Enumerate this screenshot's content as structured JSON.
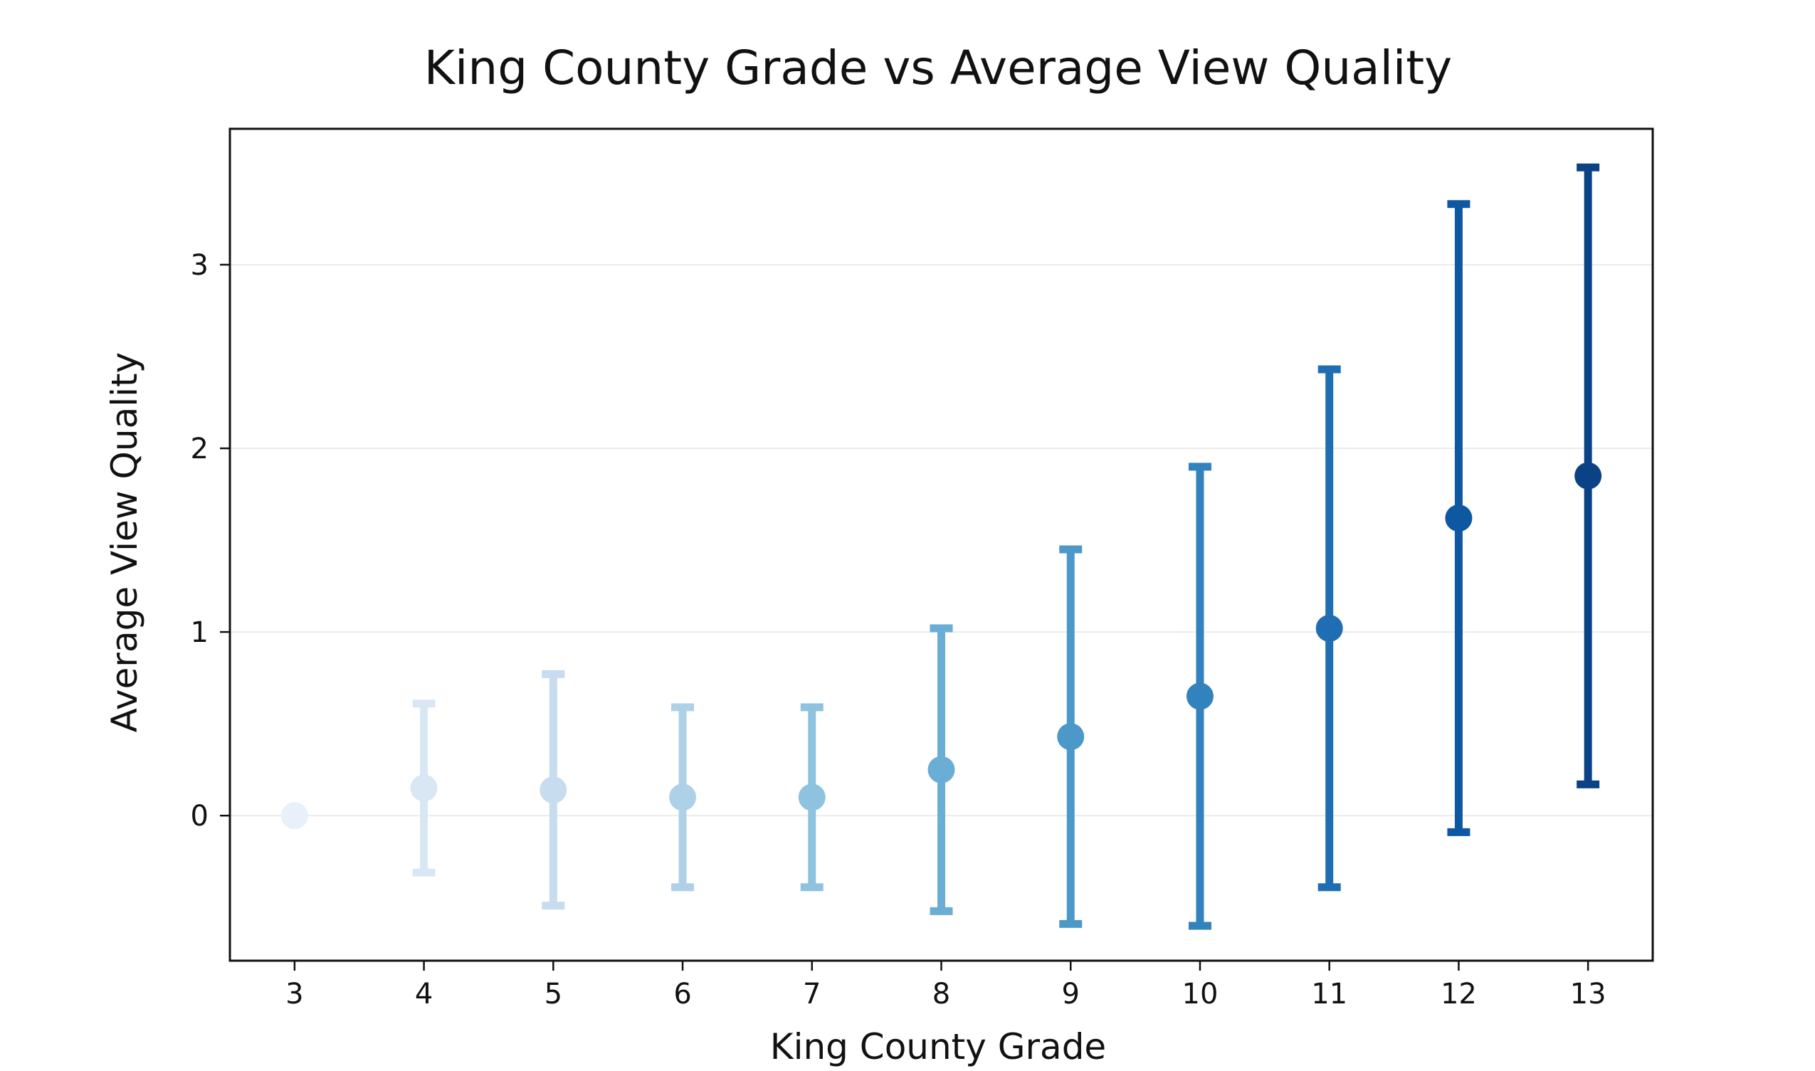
{
  "chart_data": {
    "type": "scatter",
    "title": "King County Grade vs Average View Quality",
    "xlabel": "King County Grade",
    "ylabel": "Average View Quality",
    "x": [
      3,
      4,
      5,
      6,
      7,
      8,
      9,
      10,
      11,
      12,
      13
    ],
    "y": [
      0.0,
      0.15,
      0.14,
      0.1,
      0.1,
      0.25,
      0.43,
      0.65,
      1.02,
      1.62,
      1.85
    ],
    "error": [
      0.0,
      0.46,
      0.63,
      0.49,
      0.49,
      0.77,
      1.02,
      1.25,
      1.41,
      1.71,
      1.68
    ],
    "xticks": [
      "3",
      "4",
      "5",
      "6",
      "7",
      "8",
      "9",
      "10",
      "11",
      "12",
      "13"
    ],
    "yticks": [
      "0",
      "1",
      "2",
      "3"
    ],
    "xlim": [
      2.5,
      13.5
    ],
    "ylim": [
      -0.79,
      3.74
    ],
    "grid": "horizontal",
    "legend": "none",
    "colors": [
      "#e8f0fa",
      "#d9e7f5",
      "#c7dcef",
      "#afd1e7",
      "#8fc2de",
      "#6aadd5",
      "#4b98c9",
      "#3282be",
      "#1f6eb3",
      "#0d58a1",
      "#0b4285"
    ]
  }
}
